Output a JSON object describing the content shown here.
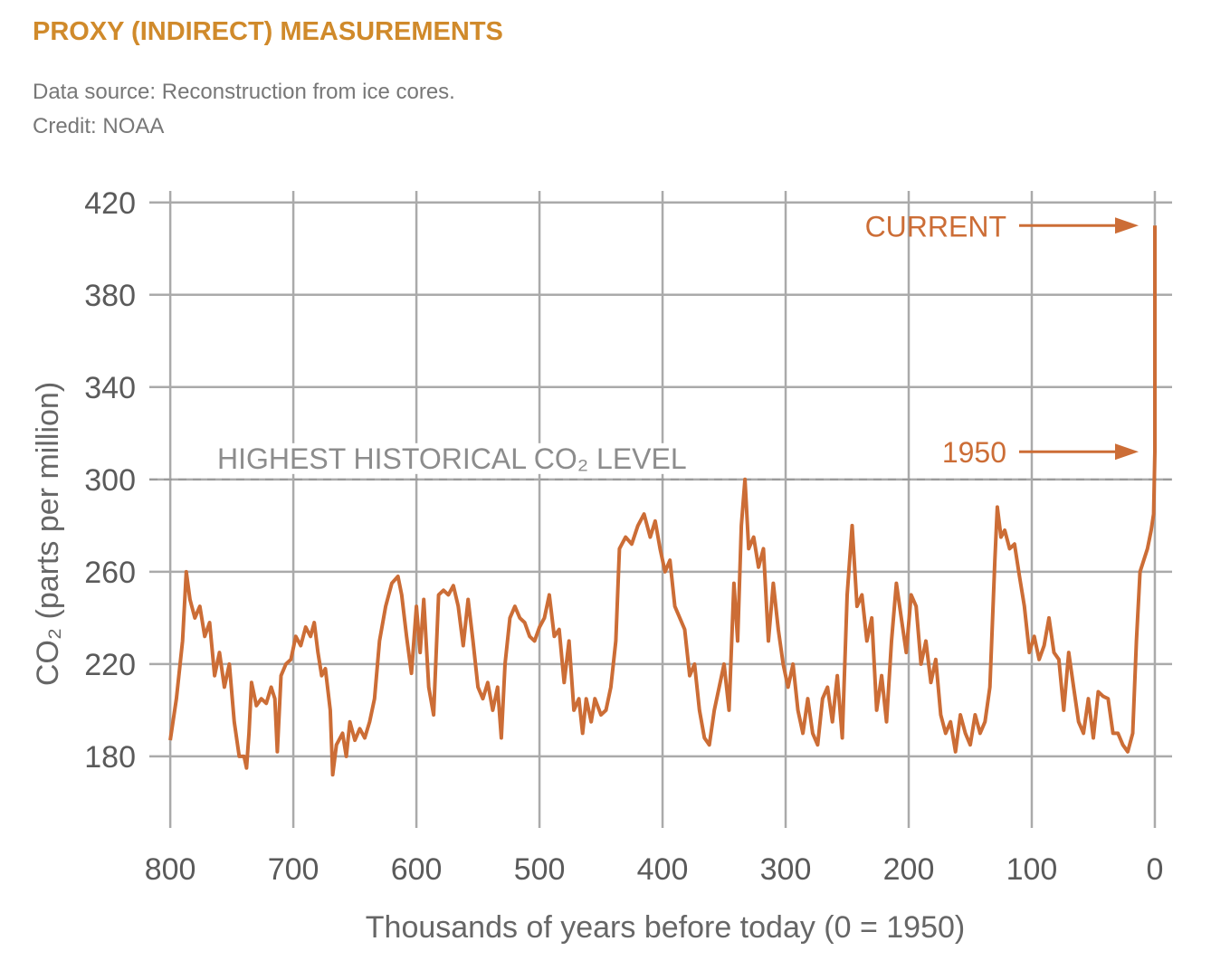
{
  "chart_data": {
    "type": "line",
    "title": "PROXY (INDIRECT) MEASUREMENTS",
    "subtitle": [
      "Data source: Reconstruction from ice cores.",
      "Credit: NOAA"
    ],
    "xlabel": "Thousands of years before today (0 = 1950)",
    "ylabel": "CO₂ (parts per million)",
    "xlim": [
      817,
      -14
    ],
    "ylim": [
      149,
      425
    ],
    "xticks": [
      800,
      700,
      600,
      500,
      400,
      300,
      200,
      100,
      0
    ],
    "yticks": [
      180,
      220,
      260,
      300,
      340,
      380,
      420
    ],
    "grid": true,
    "reference_line": {
      "text": "HIGHEST HISTORICAL CO₂ LEVEL",
      "y": 300
    },
    "annotations": [
      {
        "text": "CURRENT",
        "y": 410
      },
      {
        "text": "1950",
        "y": 312
      }
    ],
    "series": [
      {
        "color": "#cc6d36",
        "x": [
          800,
          795,
          790,
          787,
          784,
          780,
          776,
          772,
          768,
          764,
          760,
          756,
          752,
          748,
          744,
          740,
          738,
          736,
          734,
          730,
          726,
          722,
          718,
          715,
          713,
          710,
          706,
          702,
          698,
          694,
          690,
          686,
          683,
          680,
          677,
          674,
          670,
          668,
          665,
          660,
          657,
          654,
          650,
          646,
          642,
          638,
          634,
          630,
          625,
          620,
          615,
          612,
          608,
          604,
          600,
          597,
          594,
          590,
          586,
          582,
          578,
          574,
          570,
          566,
          562,
          558,
          554,
          550,
          546,
          542,
          538,
          534,
          531,
          528,
          524,
          520,
          516,
          512,
          508,
          504,
          500,
          496,
          492,
          488,
          484,
          480,
          476,
          472,
          468,
          465,
          462,
          458,
          455,
          450,
          446,
          442,
          438,
          435,
          430,
          425,
          420,
          415,
          410,
          406,
          402,
          398,
          394,
          390,
          386,
          382,
          378,
          374,
          370,
          366,
          362,
          358,
          354,
          350,
          346,
          342,
          339,
          336,
          333,
          330,
          326,
          322,
          318,
          314,
          310,
          306,
          302,
          298,
          294,
          290,
          286,
          282,
          278,
          274,
          270,
          266,
          262,
          258,
          254,
          250,
          246,
          242,
          238,
          234,
          230,
          226,
          222,
          218,
          214,
          210,
          206,
          202,
          198,
          194,
          190,
          186,
          182,
          178,
          174,
          170,
          166,
          162,
          158,
          154,
          150,
          146,
          142,
          138,
          134,
          130,
          128,
          125,
          122,
          118,
          114,
          110,
          106,
          102,
          98,
          94,
          90,
          86,
          82,
          78,
          74,
          70,
          66,
          62,
          58,
          54,
          50,
          46,
          42,
          38,
          34,
          30,
          26,
          22,
          18,
          15,
          12,
          9,
          6,
          3,
          1,
          0,
          0
        ],
        "values": [
          187,
          205,
          230,
          260,
          248,
          240,
          245,
          232,
          238,
          215,
          225,
          210,
          220,
          195,
          180,
          180,
          175,
          190,
          212,
          202,
          205,
          203,
          210,
          205,
          182,
          215,
          220,
          222,
          232,
          228,
          236,
          232,
          238,
          225,
          215,
          218,
          200,
          172,
          185,
          190,
          180,
          195,
          187,
          192,
          188,
          195,
          205,
          230,
          245,
          255,
          258,
          250,
          232,
          216,
          245,
          225,
          248,
          210,
          198,
          250,
          252,
          250,
          254,
          245,
          228,
          248,
          230,
          210,
          205,
          212,
          200,
          210,
          188,
          220,
          240,
          245,
          240,
          238,
          232,
          230,
          236,
          240,
          250,
          232,
          235,
          212,
          230,
          200,
          205,
          190,
          205,
          195,
          205,
          198,
          200,
          210,
          230,
          270,
          275,
          272,
          280,
          285,
          275,
          282,
          270,
          260,
          265,
          245,
          240,
          235,
          215,
          220,
          200,
          188,
          185,
          200,
          210,
          220,
          200,
          255,
          230,
          280,
          300,
          270,
          275,
          262,
          270,
          230,
          255,
          235,
          220,
          210,
          220,
          200,
          190,
          205,
          190,
          185,
          205,
          210,
          195,
          215,
          188,
          250,
          280,
          245,
          250,
          230,
          240,
          200,
          215,
          195,
          230,
          255,
          240,
          225,
          250,
          245,
          220,
          230,
          212,
          222,
          198,
          190,
          195,
          182,
          198,
          190,
          185,
          198,
          190,
          195,
          210,
          265,
          288,
          275,
          278,
          270,
          272,
          258,
          245,
          225,
          232,
          222,
          228,
          240,
          225,
          222,
          200,
          225,
          210,
          195,
          190,
          205,
          188,
          208,
          206,
          205,
          190,
          190,
          185,
          182,
          190,
          230,
          260,
          265,
          270,
          278,
          285,
          312,
          410
        ]
      }
    ]
  }
}
